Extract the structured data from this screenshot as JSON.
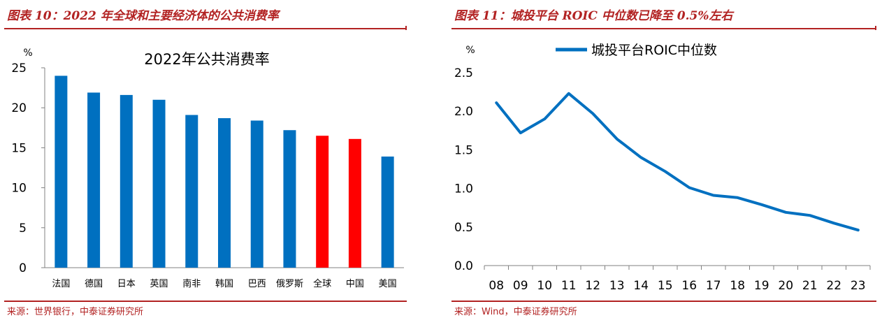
{
  "left": {
    "figure_title": "图表 10：2022 年全球和主要经济体的公共消费率",
    "source": "来源：世界银行，中泰证券研究所"
  },
  "right": {
    "figure_title": "图表 11：城投平台 ROIC 中位数已降至 0.5%左右",
    "source": "来源：Wind，中泰证券研究所"
  },
  "chart_data": [
    {
      "type": "bar",
      "title": "2022年公共消费率",
      "ylabel": "%",
      "xlabel": "",
      "ylim": [
        0,
        25
      ],
      "yticks": [
        0,
        5,
        10,
        15,
        20,
        25
      ],
      "categories": [
        "法国",
        "德国",
        "日本",
        "英国",
        "南非",
        "韩国",
        "巴西",
        "俄罗斯",
        "全球",
        "中国",
        "美国"
      ],
      "values": [
        24.0,
        21.9,
        21.6,
        21.0,
        19.1,
        18.7,
        18.4,
        17.2,
        16.5,
        16.1,
        13.9
      ],
      "colors": [
        "#0070c0",
        "#0070c0",
        "#0070c0",
        "#0070c0",
        "#0070c0",
        "#0070c0",
        "#0070c0",
        "#0070c0",
        "#ff0000",
        "#ff0000",
        "#0070c0"
      ],
      "grid": false
    },
    {
      "type": "line",
      "title": "",
      "ylabel": "%",
      "xlabel": "",
      "ylim": [
        0,
        2.5
      ],
      "yticks": [
        "0.0",
        "0.5",
        "1.0",
        "1.5",
        "2.0",
        "2.5"
      ],
      "x": [
        "08",
        "09",
        "10",
        "11",
        "12",
        "13",
        "14",
        "15",
        "16",
        "17",
        "18",
        "19",
        "20",
        "21",
        "22",
        "23"
      ],
      "series": [
        {
          "name": "城投平台ROIC中位数",
          "values": [
            2.11,
            1.72,
            1.9,
            2.23,
            1.97,
            1.64,
            1.4,
            1.22,
            1.01,
            0.91,
            0.88,
            0.79,
            0.69,
            0.65,
            0.55,
            0.46
          ],
          "color": "#0070c0"
        }
      ],
      "legend": "top-center",
      "grid": false
    }
  ]
}
